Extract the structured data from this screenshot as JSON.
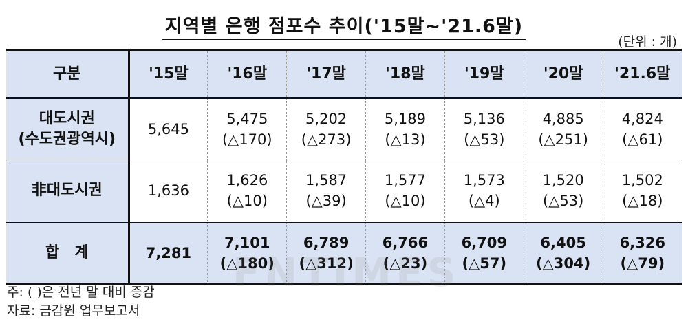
{
  "title": "지역별 은행 점포수 추이('15말~'21.6말)",
  "unit": "(단위 : 개)",
  "header": {
    "category_label": "구분",
    "periods": [
      "'15말",
      "'16말",
      "'17말",
      "'18말",
      "'19말",
      "'20말",
      "'21.6말"
    ]
  },
  "rows": [
    {
      "category_line1": "대도시권",
      "category_line2": "(수도권광역시)",
      "cells": [
        {
          "value": "5,645",
          "change": ""
        },
        {
          "value": "5,475",
          "change": "(△170)"
        },
        {
          "value": "5,202",
          "change": "(△273)"
        },
        {
          "value": "5,189",
          "change": "(△13)"
        },
        {
          "value": "5,136",
          "change": "(△53)"
        },
        {
          "value": "4,885",
          "change": "(△251)"
        },
        {
          "value": "4,824",
          "change": "(△61)"
        }
      ]
    },
    {
      "category_line1": "非대도시권",
      "category_line2": "",
      "cells": [
        {
          "value": "1,636",
          "change": ""
        },
        {
          "value": "1,626",
          "change": "(△10)"
        },
        {
          "value": "1,587",
          "change": "(△39)"
        },
        {
          "value": "1,577",
          "change": "(△10)"
        },
        {
          "value": "1,573",
          "change": "(△4)"
        },
        {
          "value": "1,520",
          "change": "(△53)"
        },
        {
          "value": "1,502",
          "change": "(△18)"
        }
      ]
    },
    {
      "category_line1": "합　계",
      "category_line2": "",
      "cells": [
        {
          "value": "7,281",
          "change": ""
        },
        {
          "value": "7,101",
          "change": "(△180)"
        },
        {
          "value": "6,789",
          "change": "(△312)"
        },
        {
          "value": "6,766",
          "change": "(△23)"
        },
        {
          "value": "6,709",
          "change": "(△57)"
        },
        {
          "value": "6,405",
          "change": "(△304)"
        },
        {
          "value": "6,326",
          "change": "(△79)"
        }
      ]
    }
  ],
  "notes": {
    "note1": "주: ( )은 전년 말 대비 증감",
    "note2": "자료: 금감원 업무보고서"
  },
  "watermark": "FNTIMES",
  "colors": {
    "header_bg": "#dae3f3",
    "border": "#111111"
  }
}
